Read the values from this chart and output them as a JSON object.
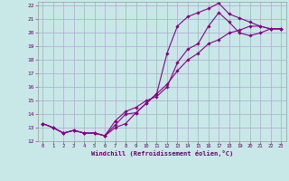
{
  "xlabel": "Windchill (Refroidissement éolien,°C)",
  "background_color": "#c8e8e8",
  "grid_color": "#aaaacc",
  "line_color": "#880088",
  "xlim": [
    -0.5,
    23.5
  ],
  "ylim": [
    12,
    22.3
  ],
  "xticks": [
    0,
    1,
    2,
    3,
    4,
    5,
    6,
    7,
    8,
    9,
    10,
    11,
    12,
    13,
    14,
    15,
    16,
    17,
    18,
    19,
    20,
    21,
    22,
    23
  ],
  "yticks": [
    12,
    13,
    14,
    15,
    16,
    17,
    18,
    19,
    20,
    21,
    22
  ],
  "line1_x": [
    0,
    1,
    2,
    3,
    4,
    5,
    6,
    7,
    8,
    9,
    10,
    11,
    12,
    13,
    14,
    15,
    16,
    17,
    18,
    19,
    20,
    21,
    22,
    23
  ],
  "line1_y": [
    13.3,
    13.0,
    12.6,
    12.8,
    12.6,
    12.6,
    12.4,
    13.0,
    13.3,
    14.1,
    14.8,
    15.5,
    18.5,
    20.5,
    21.2,
    21.5,
    21.8,
    22.2,
    21.4,
    21.1,
    20.8,
    20.5,
    20.3,
    20.3
  ],
  "line2_x": [
    0,
    1,
    2,
    3,
    4,
    5,
    6,
    7,
    8,
    9,
    10,
    11,
    12,
    13,
    14,
    15,
    16,
    17,
    18,
    19,
    20,
    21,
    22,
    23
  ],
  "line2_y": [
    13.3,
    13.0,
    12.6,
    12.8,
    12.6,
    12.6,
    12.4,
    13.2,
    14.0,
    14.1,
    14.8,
    15.5,
    16.2,
    17.2,
    18.0,
    18.5,
    19.2,
    19.5,
    20.0,
    20.2,
    20.5,
    20.5,
    20.3,
    20.3
  ],
  "line3_x": [
    0,
    1,
    2,
    3,
    4,
    5,
    6,
    7,
    8,
    9,
    10,
    11,
    12,
    13,
    14,
    15,
    16,
    17,
    18,
    19,
    20,
    21,
    22,
    23
  ],
  "line3_y": [
    13.3,
    13.0,
    12.6,
    12.8,
    12.6,
    12.6,
    12.4,
    13.5,
    14.2,
    14.5,
    15.0,
    15.3,
    16.0,
    17.8,
    18.8,
    19.2,
    20.5,
    21.5,
    20.8,
    20.0,
    19.8,
    20.0,
    20.3,
    20.3
  ]
}
